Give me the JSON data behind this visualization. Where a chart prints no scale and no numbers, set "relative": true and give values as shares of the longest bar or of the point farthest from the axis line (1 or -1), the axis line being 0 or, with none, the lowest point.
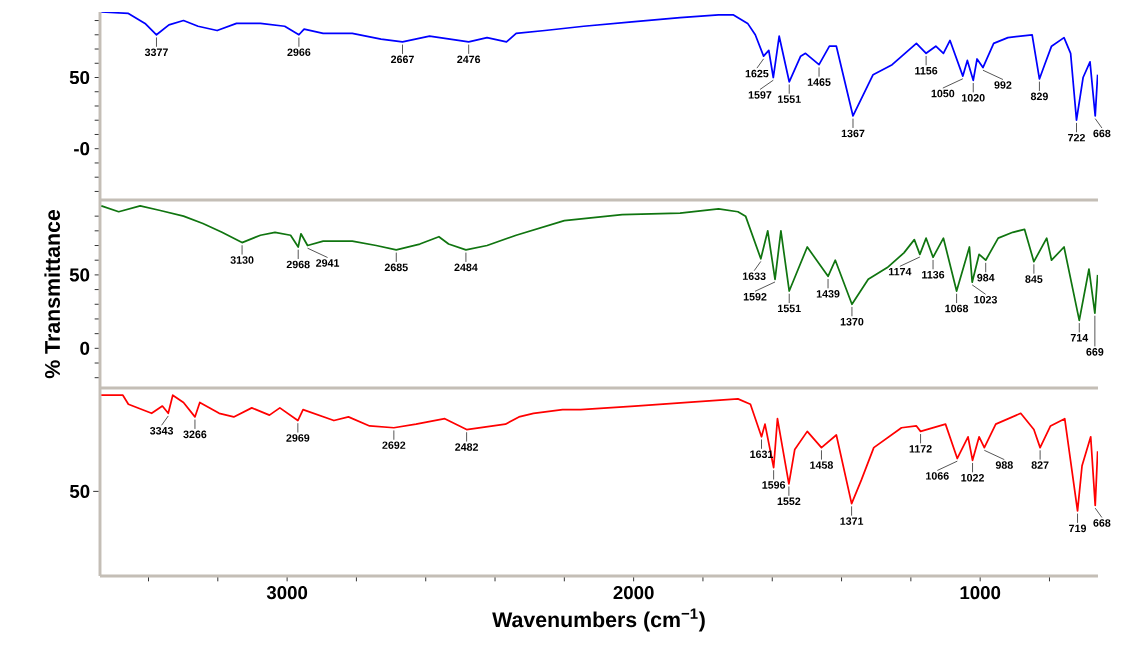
{
  "chart_data": [
    {
      "type": "line",
      "color": "#0000ff",
      "xlim": [
        3540,
        660
      ],
      "ylim": [
        -36,
        96
      ],
      "tick_labels": "y",
      "yticks": [
        {
          "value": -30,
          "label": null
        },
        {
          "value": -20,
          "label": null
        },
        {
          "value": -10,
          "label": null
        },
        {
          "value": 0,
          "label": "-0"
        },
        {
          "value": 10,
          "label": null
        },
        {
          "value": 20,
          "label": null
        },
        {
          "value": 30,
          "label": null
        },
        {
          "value": 40,
          "label": null
        },
        50,
        {
          "value": 60,
          "label": null
        },
        {
          "value": 70,
          "label": null
        },
        {
          "value": 80,
          "label": null
        },
        {
          "value": 90,
          "label": null
        }
      ],
      "x": [
        3536,
        3458,
        3410,
        3377,
        3341,
        3299,
        3257,
        3202,
        3146,
        3077,
        3007,
        2966,
        2951,
        2896,
        2812,
        2729,
        2667,
        2589,
        2476,
        2423,
        2367,
        2339,
        2256,
        2144,
        2005,
        1866,
        1755,
        1713,
        1671,
        1649,
        1625,
        1610,
        1597,
        1580,
        1551,
        1518,
        1504,
        1465,
        1435,
        1415,
        1367,
        1309,
        1254,
        1184,
        1156,
        1128,
        1106,
        1087,
        1050,
        1037,
        1020,
        1009,
        992,
        961,
        920,
        850,
        829,
        814,
        794,
        758,
        739,
        722,
        703,
        683,
        668,
        661
      ],
      "values": [
        96,
        95,
        88,
        80,
        87,
        90,
        86,
        83,
        88,
        88,
        86,
        80,
        84,
        81,
        81,
        77,
        75,
        79,
        75,
        78,
        75,
        81,
        83,
        86,
        89,
        92,
        94,
        94,
        88,
        80,
        65,
        69,
        50,
        79,
        47,
        65,
        67,
        59,
        72,
        72,
        23,
        52,
        59,
        74,
        67,
        72,
        67,
        76,
        51,
        62,
        48,
        63,
        57,
        74,
        78,
        80,
        49,
        59,
        72,
        78,
        67,
        20,
        50,
        61,
        23,
        52
      ],
      "annotations": [
        {
          "text": "3377",
          "x": 3377,
          "y": 80
        },
        {
          "text": "2966",
          "x": 2966,
          "y": 80
        },
        {
          "text": "2667",
          "x": 2667,
          "y": 75
        },
        {
          "text": "2476",
          "x": 2476,
          "y": 75
        },
        {
          "text": "1625",
          "x": 1625,
          "y": 65
        },
        {
          "text": "1597",
          "x": 1597,
          "y": 50
        },
        {
          "text": "1551",
          "x": 1551,
          "y": 47
        },
        {
          "text": "1465",
          "x": 1465,
          "y": 59
        },
        {
          "text": "1367",
          "x": 1367,
          "y": 23
        },
        {
          "text": "1156",
          "x": 1156,
          "y": 67
        },
        {
          "text": "1050",
          "x": 1050,
          "y": 51
        },
        {
          "text": "1020",
          "x": 1020,
          "y": 48
        },
        {
          "text": "992",
          "x": 992,
          "y": 57
        },
        {
          "text": "829",
          "x": 829,
          "y": 49
        },
        {
          "text": "722",
          "x": 722,
          "y": 20
        },
        {
          "text": "668",
          "x": 668,
          "y": 23
        }
      ]
    },
    {
      "type": "line",
      "color": "#107510",
      "xlim": [
        3540,
        660
      ],
      "ylim": [
        -27,
        101
      ],
      "tick_labels": "y",
      "ylabel": "% Transmittance",
      "yticks": [
        {
          "value": -20,
          "label": null
        },
        {
          "value": -10,
          "label": null
        },
        0,
        {
          "value": 10,
          "label": null
        },
        {
          "value": 20,
          "label": null
        },
        {
          "value": 30,
          "label": null
        },
        {
          "value": 40,
          "label": null
        },
        50,
        {
          "value": 60,
          "label": null
        },
        {
          "value": 70,
          "label": null
        },
        {
          "value": 80,
          "label": null
        },
        {
          "value": 90,
          "label": null
        }
      ],
      "x": [
        3536,
        3486,
        3424,
        3369,
        3299,
        3243,
        3188,
        3130,
        3077,
        3035,
        2990,
        2968,
        2960,
        2941,
        2896,
        2812,
        2743,
        2685,
        2617,
        2562,
        2534,
        2484,
        2423,
        2339,
        2200,
        2033,
        1866,
        1755,
        1699,
        1677,
        1633,
        1613,
        1592,
        1575,
        1551,
        1499,
        1439,
        1418,
        1370,
        1323,
        1268,
        1220,
        1190,
        1174,
        1156,
        1136,
        1106,
        1068,
        1031,
        1023,
        1003,
        984,
        948,
        906,
        872,
        845,
        808,
        794,
        758,
        714,
        686,
        669,
        661
      ],
      "values": [
        97,
        93,
        97,
        94,
        90,
        85,
        79,
        72,
        77,
        79,
        77,
        69,
        78,
        70,
        73,
        73,
        70,
        67,
        71,
        76,
        71,
        67,
        70,
        77,
        87,
        91,
        92,
        95,
        93,
        90,
        61,
        80,
        47,
        80,
        39,
        69,
        49,
        60,
        30,
        47,
        55,
        65,
        74,
        64,
        75,
        62,
        75,
        39,
        69,
        45,
        64,
        60,
        75,
        79,
        81,
        59,
        75,
        60,
        69,
        19,
        54,
        24,
        50
      ],
      "annotations": [
        {
          "text": "3130",
          "x": 3130,
          "y": 72
        },
        {
          "text": "2968",
          "x": 2968,
          "y": 69
        },
        {
          "text": "2941",
          "x": 2941,
          "y": 70
        },
        {
          "text": "2685",
          "x": 2685,
          "y": 67
        },
        {
          "text": "2484",
          "x": 2484,
          "y": 67
        },
        {
          "text": "1633",
          "x": 1633,
          "y": 61
        },
        {
          "text": "1592",
          "x": 1592,
          "y": 47
        },
        {
          "text": "1551",
          "x": 1551,
          "y": 39
        },
        {
          "text": "1439",
          "x": 1439,
          "y": 49
        },
        {
          "text": "1370",
          "x": 1370,
          "y": 30
        },
        {
          "text": "1174",
          "x": 1174,
          "y": 64
        },
        {
          "text": "1136",
          "x": 1136,
          "y": 62
        },
        {
          "text": "1068",
          "x": 1068,
          "y": 39
        },
        {
          "text": "1023",
          "x": 1023,
          "y": 45
        },
        {
          "text": "984",
          "x": 984,
          "y": 60
        },
        {
          "text": "845",
          "x": 845,
          "y": 59
        },
        {
          "text": "714",
          "x": 714,
          "y": 19
        },
        {
          "text": "669",
          "x": 669,
          "y": 24
        }
      ]
    },
    {
      "type": "line",
      "color": "#ff0000",
      "xlim": [
        3540,
        660
      ],
      "relative": true,
      "xlabel": "Wavenumbers (cm$^{−1}$)",
      "xticks": [
        {
          "value": 3400,
          "label": null
        },
        {
          "value": 3200,
          "label": null
        },
        3000,
        {
          "value": 2800,
          "label": null
        },
        {
          "value": 2600,
          "label": null
        },
        {
          "value": 2400,
          "label": null
        },
        {
          "value": 2200,
          "label": null
        },
        2000,
        {
          "value": 1800,
          "label": null
        },
        {
          "value": 1600,
          "label": null
        },
        {
          "value": 1400,
          "label": null
        },
        {
          "value": 1200,
          "label": null
        },
        1000,
        {
          "value": 800,
          "label": null
        }
      ],
      "x": [
        3536,
        3474,
        3458,
        3391,
        3360,
        3343,
        3330,
        3299,
        3266,
        3252,
        3196,
        3154,
        3102,
        3051,
        3021,
        2969,
        2954,
        2865,
        2823,
        2762,
        2692,
        2628,
        2545,
        2482,
        2370,
        2331,
        2289,
        2205,
        2153,
        1997,
        1844,
        1699,
        1663,
        1631,
        1621,
        1596,
        1585,
        1552,
        1535,
        1499,
        1458,
        1415,
        1371,
        1343,
        1307,
        1227,
        1184,
        1172,
        1100,
        1066,
        1035,
        1022,
        1003,
        988,
        955,
        883,
        845,
        827,
        797,
        756,
        719,
        706,
        681,
        668,
        661
      ],
      "values": [
        1,
        1,
        0.95,
        0.9,
        0.94,
        0.9,
        1,
        0.96,
        0.88,
        0.96,
        0.9,
        0.88,
        0.93,
        0.89,
        0.93,
        0.86,
        0.92,
        0.86,
        0.88,
        0.83,
        0.82,
        0.84,
        0.87,
        0.81,
        0.84,
        0.88,
        0.9,
        0.92,
        0.92,
        0.94,
        0.96,
        0.98,
        0.95,
        0.77,
        0.84,
        0.6,
        0.87,
        0.51,
        0.7,
        0.8,
        0.71,
        0.78,
        0.4,
        0.53,
        0.71,
        0.82,
        0.83,
        0.8,
        0.84,
        0.65,
        0.77,
        0.64,
        0.77,
        0.71,
        0.84,
        0.9,
        0.81,
        0.71,
        0.83,
        0.87,
        0.36,
        0.61,
        0.77,
        0.39,
        0.69
      ],
      "annotations": [
        "50",
        {
          "text": "3343",
          "x": 3343,
          "y": 0.9
        },
        {
          "text": "3266",
          "x": 3266,
          "y": 0.88
        },
        {
          "text": "2969",
          "x": 2969,
          "y": 0.86
        },
        {
          "text": "2692",
          "x": 2692,
          "y": 0.82
        },
        {
          "text": "2482",
          "x": 2482,
          "y": 0.81
        },
        {
          "text": "1631",
          "x": 1631,
          "y": 0.77
        },
        {
          "text": "1596",
          "x": 1596,
          "y": 0.6
        },
        {
          "text": "1552",
          "x": 1552,
          "y": 0.51
        },
        {
          "text": "1458",
          "x": 1458,
          "y": 0.71
        },
        {
          "text": "1371",
          "x": 1371,
          "y": 0.4
        },
        {
          "text": "1172",
          "x": 1172,
          "y": 0.8
        },
        {
          "text": "1066",
          "x": 1066,
          "y": 0.65
        },
        {
          "text": "1022",
          "x": 1022,
          "y": 0.64
        },
        {
          "text": "988",
          "x": 988,
          "y": 0.71
        },
        {
          "text": "827",
          "x": 827,
          "y": 0.71
        },
        {
          "text": "719",
          "x": 719,
          "y": 0.36
        },
        {
          "text": "668",
          "x": 668,
          "y": 0.39
        }
      ]
    }
  ]
}
